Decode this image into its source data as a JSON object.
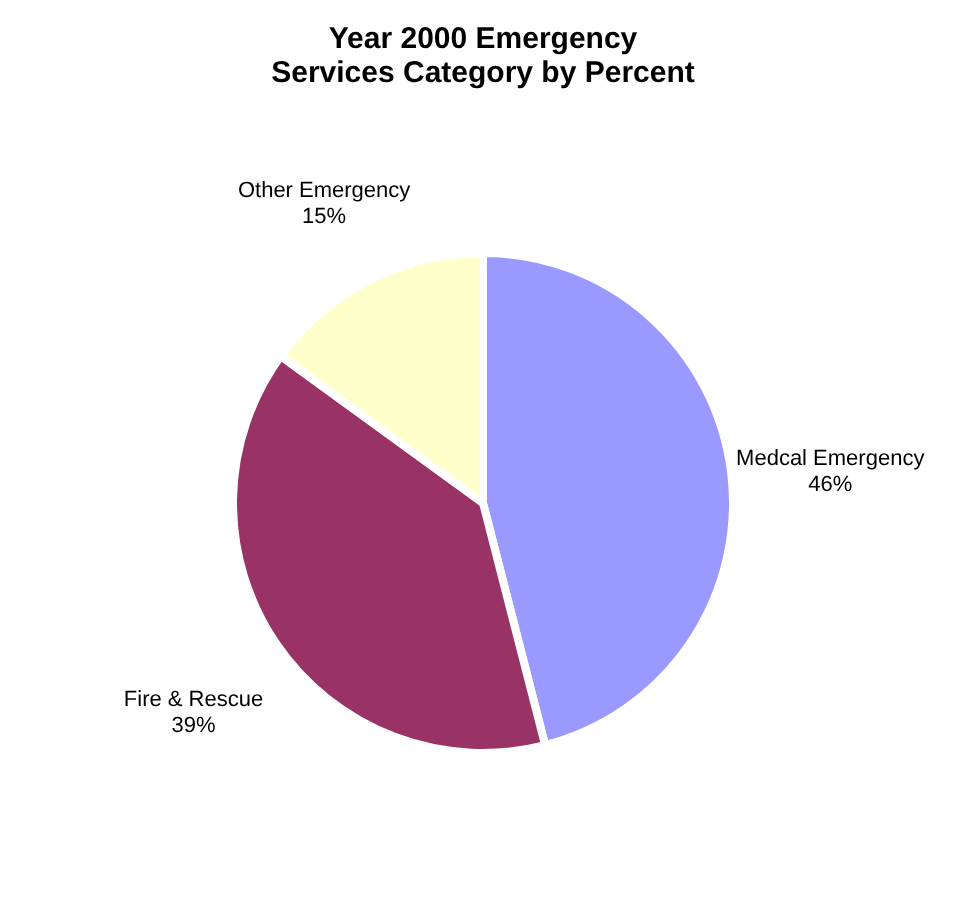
{
  "chart_data": {
    "type": "pie",
    "title": "Year 2000 Emergency Services Category by Percent",
    "categories": [
      "Medcal Emergency",
      "Fire & Rescue",
      "Other Emergency"
    ],
    "values": [
      46,
      39,
      15
    ],
    "colors": [
      "#9999ff",
      "#993366",
      "#ffffcc"
    ],
    "value_labels": [
      "46%",
      "39%",
      "15%"
    ],
    "legend": false
  }
}
